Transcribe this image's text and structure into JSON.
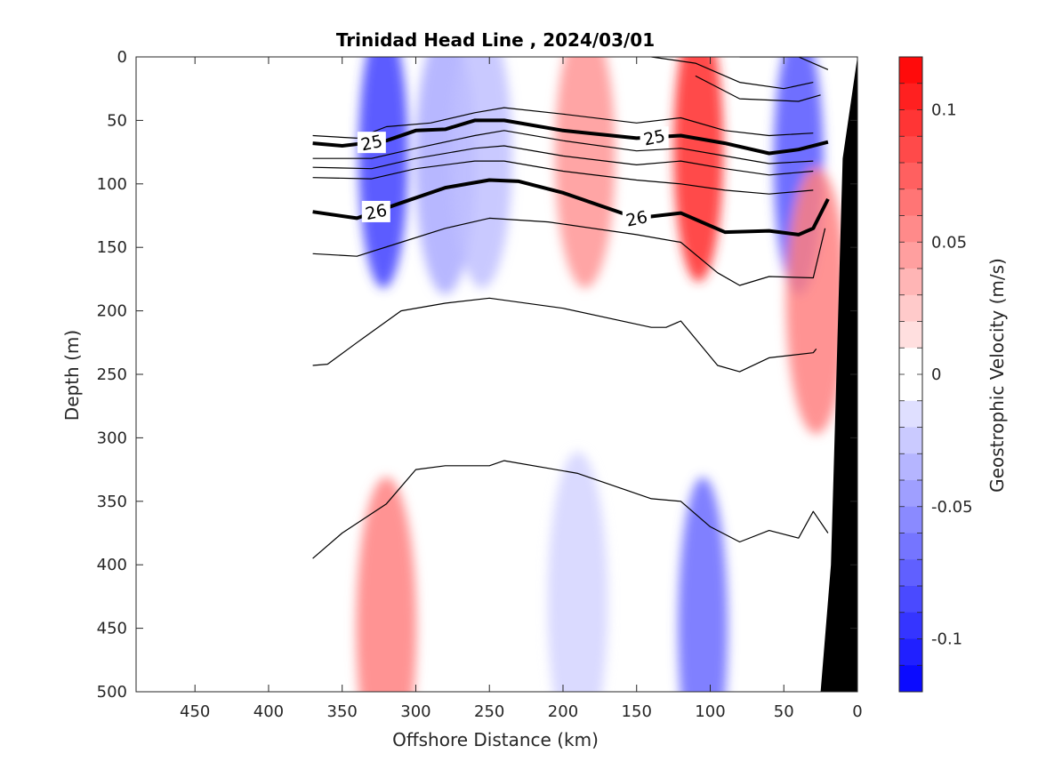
{
  "chart_data": {
    "type": "heatmap",
    "title": "Trinidad Head Line , 2024/03/01",
    "xlabel": "Offshore Distance (km)",
    "ylabel": "Depth (m)",
    "colorbar_label": "Geostrophic Velocity (m/s)",
    "xlim": [
      490,
      0
    ],
    "ylim": [
      0,
      500
    ],
    "x_ticks": [
      "450",
      "400",
      "350",
      "300",
      "250",
      "200",
      "150",
      "100",
      "50",
      "0"
    ],
    "y_ticks": [
      "0",
      "50",
      "100",
      "150",
      "200",
      "250",
      "300",
      "350",
      "400",
      "450",
      "500"
    ],
    "colorbar_ticks": [
      "0.1",
      "0.05",
      "0",
      "-0.05",
      "-0.1"
    ],
    "colorbar_range": [
      -0.12,
      0.12
    ],
    "colormap": {
      "negative": "#0000ff",
      "zero": "#ffffff",
      "positive": "#ff0000"
    },
    "velocity_cores": [
      {
        "x": 322,
        "depth": 35,
        "velocity": -0.09
      },
      {
        "x": 280,
        "depth": 40,
        "velocity": -0.04
      },
      {
        "x": 255,
        "depth": 35,
        "velocity": -0.03
      },
      {
        "x": 185,
        "depth": 35,
        "velocity": 0.05
      },
      {
        "x": 108,
        "depth": 30,
        "velocity": 0.1
      },
      {
        "x": 40,
        "depth": 40,
        "velocity": -0.08
      },
      {
        "x": 320,
        "depth": 450,
        "velocity": 0.06
      },
      {
        "x": 105,
        "depth": 450,
        "velocity": -0.07
      },
      {
        "x": 190,
        "depth": 430,
        "velocity": -0.02
      },
      {
        "x": 28,
        "depth": 150,
        "velocity": 0.06
      }
    ],
    "density_contours": [
      {
        "label": "25",
        "bold": true,
        "points": [
          [
            370,
            68
          ],
          [
            350,
            70
          ],
          [
            320,
            66
          ],
          [
            300,
            58
          ],
          [
            280,
            57
          ],
          [
            260,
            50
          ],
          [
            240,
            50
          ],
          [
            200,
            58
          ],
          [
            150,
            64
          ],
          [
            120,
            62
          ],
          [
            90,
            68
          ],
          [
            60,
            76
          ],
          [
            40,
            73
          ],
          [
            20,
            67
          ]
        ]
      },
      {
        "label": "26",
        "bold": true,
        "points": [
          [
            370,
            122
          ],
          [
            340,
            127
          ],
          [
            310,
            115
          ],
          [
            280,
            103
          ],
          [
            250,
            97
          ],
          [
            230,
            98
          ],
          [
            200,
            107
          ],
          [
            150,
            127
          ],
          [
            120,
            123
          ],
          [
            90,
            138
          ],
          [
            60,
            137
          ],
          [
            40,
            140
          ],
          [
            30,
            135
          ],
          [
            20,
            112
          ]
        ]
      },
      {
        "label": "",
        "bold": false,
        "points": [
          [
            370,
            62
          ],
          [
            340,
            64
          ],
          [
            320,
            55
          ],
          [
            290,
            52
          ],
          [
            260,
            44
          ],
          [
            240,
            40
          ],
          [
            200,
            45
          ],
          [
            150,
            52
          ],
          [
            120,
            48
          ],
          [
            90,
            58
          ],
          [
            60,
            62
          ],
          [
            30,
            60
          ]
        ]
      },
      {
        "label": "",
        "bold": false,
        "points": [
          [
            370,
            80
          ],
          [
            330,
            80
          ],
          [
            300,
            72
          ],
          [
            260,
            62
          ],
          [
            240,
            58
          ],
          [
            200,
            66
          ],
          [
            150,
            74
          ],
          [
            120,
            72
          ],
          [
            90,
            78
          ],
          [
            60,
            84
          ],
          [
            30,
            82
          ]
        ]
      },
      {
        "label": "",
        "bold": false,
        "points": [
          [
            370,
            87
          ],
          [
            330,
            88
          ],
          [
            300,
            80
          ],
          [
            260,
            72
          ],
          [
            240,
            70
          ],
          [
            200,
            78
          ],
          [
            150,
            85
          ],
          [
            120,
            82
          ],
          [
            90,
            88
          ],
          [
            60,
            93
          ],
          [
            30,
            90
          ]
        ]
      },
      {
        "label": "",
        "bold": false,
        "points": [
          [
            370,
            95
          ],
          [
            330,
            96
          ],
          [
            300,
            88
          ],
          [
            260,
            82
          ],
          [
            240,
            82
          ],
          [
            200,
            90
          ],
          [
            150,
            97
          ],
          [
            120,
            100
          ],
          [
            90,
            105
          ],
          [
            60,
            108
          ],
          [
            30,
            105
          ]
        ]
      },
      {
        "label": "",
        "bold": false,
        "points": [
          [
            370,
            155
          ],
          [
            340,
            157
          ],
          [
            310,
            146
          ],
          [
            280,
            135
          ],
          [
            250,
            127
          ],
          [
            210,
            130
          ],
          [
            150,
            140
          ],
          [
            120,
            146
          ],
          [
            95,
            170
          ],
          [
            80,
            180
          ],
          [
            60,
            173
          ],
          [
            30,
            174
          ],
          [
            22,
            135
          ]
        ]
      },
      {
        "label": "",
        "bold": false,
        "points": [
          [
            370,
            243
          ],
          [
            360,
            242
          ],
          [
            340,
            225
          ],
          [
            310,
            200
          ],
          [
            280,
            194
          ],
          [
            250,
            190
          ],
          [
            200,
            198
          ],
          [
            140,
            213
          ],
          [
            130,
            213
          ],
          [
            120,
            208
          ],
          [
            95,
            243
          ],
          [
            80,
            248
          ],
          [
            60,
            237
          ],
          [
            30,
            233
          ],
          [
            28,
            230
          ]
        ]
      },
      {
        "label": "",
        "bold": false,
        "points": [
          [
            370,
            395
          ],
          [
            350,
            375
          ],
          [
            320,
            352
          ],
          [
            300,
            325
          ],
          [
            280,
            322
          ],
          [
            250,
            322
          ],
          [
            240,
            318
          ],
          [
            190,
            328
          ],
          [
            140,
            348
          ],
          [
            120,
            350
          ],
          [
            100,
            370
          ],
          [
            80,
            382
          ],
          [
            60,
            373
          ],
          [
            40,
            379
          ],
          [
            30,
            358
          ],
          [
            20,
            375
          ]
        ]
      },
      {
        "label": "",
        "bold": false,
        "points": [
          [
            80,
            0
          ],
          [
            40,
            0
          ],
          [
            20,
            10
          ]
        ]
      },
      {
        "label": "",
        "bold": false,
        "points": [
          [
            140,
            0
          ],
          [
            110,
            5
          ],
          [
            80,
            20
          ],
          [
            50,
            25
          ],
          [
            30,
            20
          ]
        ]
      },
      {
        "label": "",
        "bold": false,
        "points": [
          [
            110,
            15
          ],
          [
            80,
            33
          ],
          [
            40,
            35
          ],
          [
            25,
            30
          ]
        ]
      }
    ],
    "bathymetry": [
      [
        0,
        0
      ],
      [
        10,
        80
      ],
      [
        18,
        400
      ],
      [
        25,
        500
      ]
    ]
  }
}
